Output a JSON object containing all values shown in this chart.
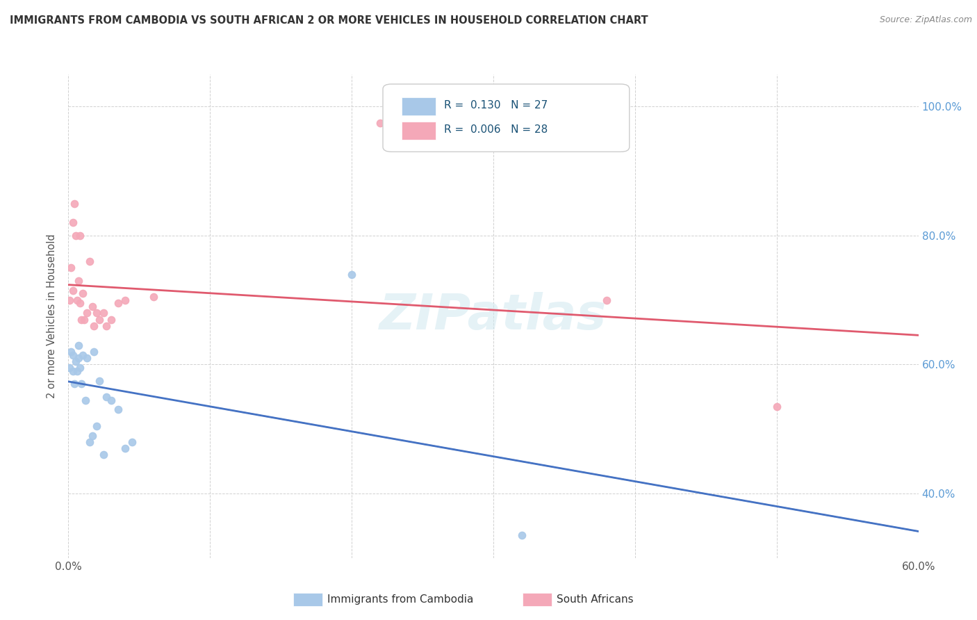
{
  "title": "IMMIGRANTS FROM CAMBODIA VS SOUTH AFRICAN 2 OR MORE VEHICLES IN HOUSEHOLD CORRELATION CHART",
  "source": "Source: ZipAtlas.com",
  "ylabel": "2 or more Vehicles in Household",
  "xlim": [
    0.0,
    0.6
  ],
  "ylim": [
    0.3,
    1.05
  ],
  "xtick_positions": [
    0.0,
    0.1,
    0.2,
    0.3,
    0.4,
    0.5,
    0.6
  ],
  "xtick_labels": [
    "0.0%",
    "",
    "",
    "",
    "",
    "",
    "60.0%"
  ],
  "ytick_positions": [
    0.4,
    0.6,
    0.8,
    1.0
  ],
  "ytick_labels_right": [
    "40.0%",
    "60.0%",
    "80.0%",
    "100.0%"
  ],
  "legend_r": [
    "R =  0.130",
    "R =  0.006"
  ],
  "legend_n": [
    "N = 27",
    "N = 28"
  ],
  "legend_labels": [
    "Immigrants from Cambodia",
    "South Africans"
  ],
  "blue_color": "#a8c8e8",
  "pink_color": "#f4a8b8",
  "blue_line_color": "#4472c4",
  "pink_line_color": "#e05a6e",
  "watermark": "ZIPatlas",
  "cambodia_x": [
    0.001,
    0.002,
    0.003,
    0.003,
    0.004,
    0.005,
    0.006,
    0.007,
    0.007,
    0.008,
    0.009,
    0.01,
    0.012,
    0.013,
    0.015,
    0.017,
    0.018,
    0.02,
    0.022,
    0.025,
    0.027,
    0.03,
    0.035,
    0.04,
    0.045,
    0.2,
    0.32
  ],
  "cambodia_y": [
    0.595,
    0.62,
    0.615,
    0.59,
    0.57,
    0.605,
    0.59,
    0.63,
    0.61,
    0.595,
    0.57,
    0.615,
    0.545,
    0.61,
    0.48,
    0.49,
    0.62,
    0.505,
    0.575,
    0.46,
    0.55,
    0.545,
    0.53,
    0.47,
    0.48,
    0.74,
    0.335
  ],
  "south_african_x": [
    0.001,
    0.002,
    0.003,
    0.003,
    0.004,
    0.005,
    0.006,
    0.007,
    0.008,
    0.008,
    0.009,
    0.01,
    0.011,
    0.013,
    0.015,
    0.017,
    0.018,
    0.02,
    0.022,
    0.025,
    0.027,
    0.03,
    0.035,
    0.04,
    0.06,
    0.22,
    0.38,
    0.5
  ],
  "south_african_y": [
    0.7,
    0.75,
    0.715,
    0.82,
    0.85,
    0.8,
    0.7,
    0.73,
    0.695,
    0.8,
    0.67,
    0.71,
    0.67,
    0.68,
    0.76,
    0.69,
    0.66,
    0.68,
    0.67,
    0.68,
    0.66,
    0.67,
    0.695,
    0.7,
    0.705,
    0.975,
    0.7,
    0.535
  ],
  "point_size": 55
}
